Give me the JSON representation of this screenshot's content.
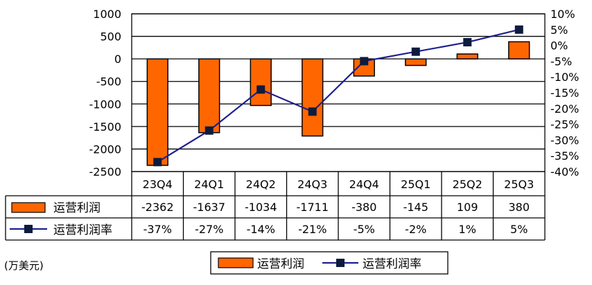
{
  "chart_data": {
    "type": "bar+line",
    "categories": [
      "23Q4",
      "24Q1",
      "24Q2",
      "24Q3",
      "24Q4",
      "25Q1",
      "25Q2",
      "25Q3"
    ],
    "series": [
      {
        "name": "运营利润",
        "type": "bar",
        "axis": "left",
        "values": [
          -2362,
          -1637,
          -1034,
          -1711,
          -380,
          -145,
          109,
          380
        ],
        "labels": [
          "-2362",
          "-1637",
          "-1034",
          "-1711",
          "-380",
          "-145",
          "109",
          "380"
        ],
        "color": "#ff6600"
      },
      {
        "name": "运营利润率",
        "type": "line",
        "axis": "right",
        "values": [
          -37,
          -27,
          -14,
          -21,
          -5,
          -2,
          1,
          5
        ],
        "labels": [
          "-37%",
          "-27%",
          "-14%",
          "-21%",
          "-5%",
          "-2%",
          "1%",
          "5%"
        ],
        "color": "#1f1f8f",
        "marker_color": "#0d1b3e"
      }
    ],
    "left_axis": {
      "ylim": [
        -2500,
        1000
      ],
      "ticks": [
        1000,
        500,
        0,
        -500,
        -1000,
        -1500,
        -2000,
        -2500
      ],
      "tick_labels": [
        "1000",
        "500",
        "0",
        "-500",
        "-1000",
        "-1500",
        "-2000",
        "-2500"
      ]
    },
    "right_axis": {
      "ylim": [
        -40,
        10
      ],
      "ticks": [
        10,
        5,
        0,
        -5,
        -10,
        -15,
        -20,
        -25,
        -30,
        -35,
        -40
      ],
      "tick_labels": [
        "10%",
        "5%",
        "0%",
        "-5%",
        "-10%",
        "-15%",
        "-20%",
        "-25%",
        "-30%",
        "-35%",
        "-40%"
      ]
    },
    "unit_label": "(万美元)",
    "grid": true,
    "legend_position": "bottom",
    "data_table": true
  }
}
